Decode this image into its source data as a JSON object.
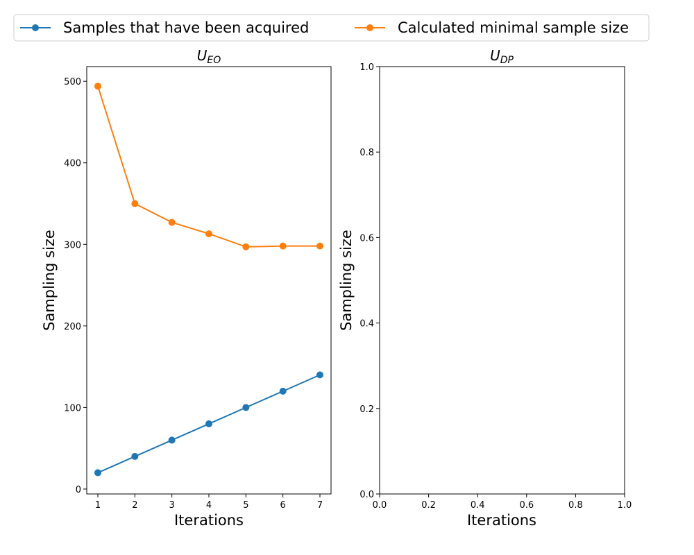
{
  "legend": {
    "entries": [
      {
        "label": "Samples that have been acquired",
        "color": "#1f77b4"
      },
      {
        "label": "Calculated minimal sample size",
        "color": "#ff7f0e"
      }
    ]
  },
  "chart_data": [
    {
      "type": "line",
      "title": {
        "main": "U",
        "sub": "EO"
      },
      "xlabel": "Iterations",
      "ylabel": "Sampling size",
      "x": [
        1,
        2,
        3,
        4,
        5,
        6,
        7
      ],
      "xlim": [
        0.7,
        7.3
      ],
      "ylim": [
        -6,
        518
      ],
      "xticks": [
        "1",
        "2",
        "3",
        "4",
        "5",
        "6",
        "7"
      ],
      "yticks": [
        "0",
        "100",
        "200",
        "300",
        "400",
        "500"
      ],
      "grid": false,
      "legend_position": "top-center (above plots)",
      "series": [
        {
          "name": "Samples that have been acquired",
          "color": "#1f77b4",
          "values": [
            20,
            40,
            60,
            80,
            100,
            120,
            140
          ]
        },
        {
          "name": "Calculated minimal sample size",
          "color": "#ff7f0e",
          "values": [
            494,
            350,
            327,
            313,
            297,
            298,
            298
          ]
        }
      ]
    },
    {
      "type": "line",
      "title": {
        "main": "U",
        "sub": "DP"
      },
      "xlabel": "Iterations",
      "ylabel": "Sampling size",
      "xlim": [
        0.0,
        1.0
      ],
      "ylim": [
        0.0,
        1.0
      ],
      "xticks": [
        "0.0",
        "0.2",
        "0.4",
        "0.6",
        "0.8",
        "1.0"
      ],
      "yticks": [
        "0.0",
        "0.2",
        "0.4",
        "0.6",
        "0.8",
        "1.0"
      ],
      "grid": false,
      "series": []
    }
  ]
}
